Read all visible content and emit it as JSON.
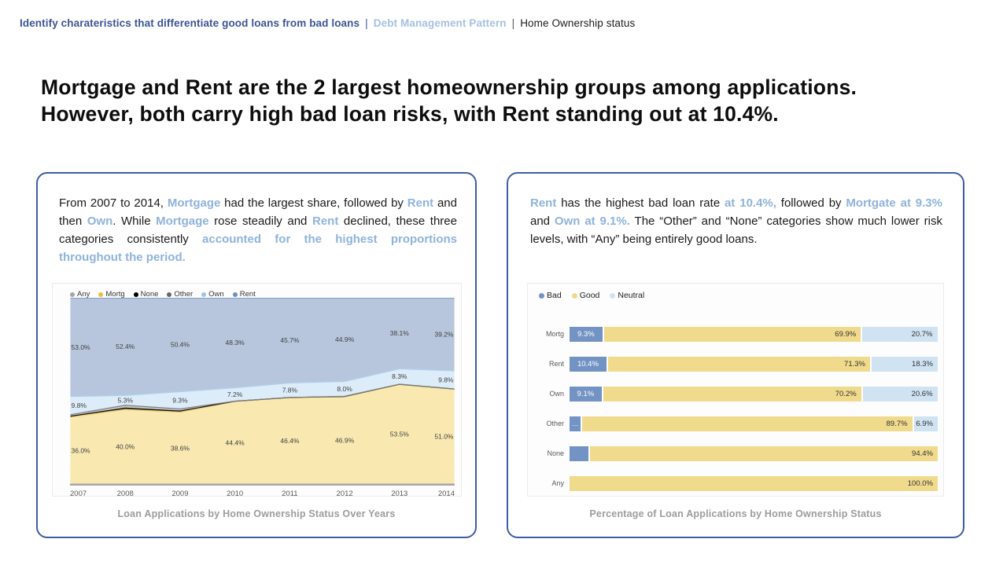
{
  "header": {
    "title_primary": "Identify charateristics that differentiate good loans from bad loans",
    "separator": "|",
    "title_secondary": "Debt Management Pattern",
    "title_tertiary": "Home Ownership status"
  },
  "headline": {
    "line1": "Mortgage and Rent are the 2 largest homeownership groups among applications.",
    "line2": "However, both carry high bad loan risks, with Rent standing out at 10.4%."
  },
  "colors": {
    "accent_navy": "#3d5494",
    "accent_lightblue": "#8fb3dc",
    "card_border": "#3d5da4",
    "caption_gray": "#9c9c9c",
    "bad": "#7293c3",
    "good": "#f0da8c",
    "neutral": "#cfe3f2"
  },
  "left_card": {
    "paragraph": [
      {
        "text": "From 2007 to 2014, ",
        "highlight": false
      },
      {
        "text": "Mortgage",
        "highlight": true
      },
      {
        "text": " had the largest share, followed by ",
        "highlight": false
      },
      {
        "text": "Rent",
        "highlight": true
      },
      {
        "text": " and then ",
        "highlight": false
      },
      {
        "text": "Own",
        "highlight": true
      },
      {
        "text": ". While ",
        "highlight": false
      },
      {
        "text": "Mortgage",
        "highlight": true
      },
      {
        "text": " rose steadily and ",
        "highlight": false
      },
      {
        "text": "Rent",
        "highlight": true
      },
      {
        "text": " declined, these three categories consistently ",
        "highlight": false
      },
      {
        "text": "accounted for the highest proportions throughout the period.",
        "highlight": true
      }
    ],
    "caption": "Loan Applications by Home Ownership Status Over Years"
  },
  "right_card": {
    "paragraph": [
      {
        "text": "Rent",
        "highlight": true
      },
      {
        "text": " has the highest bad loan rate ",
        "highlight": false
      },
      {
        "text": "at 10.4%,",
        "highlight": true
      },
      {
        "text": " followed by ",
        "highlight": false
      },
      {
        "text": "Mortgate at 9.3%",
        "highlight": true
      },
      {
        "text": " and ",
        "highlight": false
      },
      {
        "text": "Own at 9.1%.",
        "highlight": true
      },
      {
        "text": " The “Other” and “None” categories show much lower risk levels, with “Any” being entirely good loans.",
        "highlight": false
      }
    ],
    "caption": "Percentage of Loan Applications by Home Ownership Status"
  },
  "chart_data": [
    {
      "type": "area",
      "title": "Loan Applications by Home Ownership Status Over Years",
      "x": [
        2007,
        2008,
        2009,
        2010,
        2011,
        2012,
        2013,
        2014
      ],
      "ylim": [
        0,
        100
      ],
      "grid": "vertical-dotted",
      "legend_position": "top-left",
      "legend": [
        {
          "label": "Any",
          "color": "#a6a6a6"
        },
        {
          "label": "Mortg",
          "color": "#eebe3a"
        },
        {
          "label": "None",
          "color": "#000000"
        },
        {
          "label": "Other",
          "color": "#666666"
        },
        {
          "label": "Own",
          "color": "#9dc3e6"
        },
        {
          "label": "Rent",
          "color": "#6d8fc0"
        }
      ],
      "stack": [
        "Any",
        "Mortg",
        "None",
        "Other",
        "Own",
        "Rent"
      ],
      "series": [
        {
          "name": "Any",
          "fill": "#bfbfbf",
          "stroke": "#a6a6a6",
          "lw": 1,
          "labeled": false,
          "values": [
            0,
            0,
            0,
            0,
            0,
            0,
            0,
            0
          ]
        },
        {
          "name": "Mortg",
          "fill": "#f9e9b1",
          "stroke": "#e9cd6f",
          "lw": 1.4,
          "labeled": true,
          "values": [
            36.0,
            40.0,
            38.6,
            44.4,
            46.4,
            46.9,
            53.5,
            51.0
          ]
        },
        {
          "name": "None",
          "fill": "#3c3c3c",
          "stroke": "#111111",
          "lw": 1.2,
          "labeled": false,
          "values": [
            0.4,
            0.8,
            0.6,
            0.05,
            0.05,
            0.1,
            0.05,
            0.0
          ]
        },
        {
          "name": "Other",
          "fill": "#c6c6c6",
          "stroke": "#808080",
          "lw": 1.2,
          "labeled": false,
          "values": [
            0.8,
            1.5,
            1.1,
            0.05,
            0.05,
            0.1,
            0.05,
            0.0
          ]
        },
        {
          "name": "Own",
          "fill": "#dcecf8",
          "stroke": "#aed0ec",
          "lw": 1.4,
          "labeled": true,
          "values": [
            9.8,
            5.3,
            9.3,
            7.2,
            7.8,
            8.0,
            8.3,
            9.8
          ]
        },
        {
          "name": "Rent",
          "fill": "#b7c6dc",
          "stroke": "#6f94c4",
          "lw": 1.6,
          "labeled": true,
          "values": [
            53.0,
            52.4,
            50.4,
            48.3,
            45.7,
            44.9,
            38.1,
            39.2
          ]
        }
      ]
    },
    {
      "type": "bar",
      "orientation": "horizontal",
      "stacked": true,
      "title": "Percentage of Loan Applications by Home Ownership Status",
      "legend_position": "top-left",
      "legend": [
        {
          "label": "Bad",
          "color": "#7293c3"
        },
        {
          "label": "Good",
          "color": "#f0da8c"
        },
        {
          "label": "Neutral",
          "color": "#cfe3f2"
        }
      ],
      "categories": [
        "Mortg",
        "Rent",
        "Own",
        "Other",
        "None",
        "Any"
      ],
      "series": [
        {
          "name": "Bad",
          "color": "#7293c3",
          "values": [
            9.3,
            10.4,
            9.1,
            3.4,
            5.6,
            0
          ]
        },
        {
          "name": "Good",
          "color": "#f0da8c",
          "values": [
            69.9,
            71.3,
            70.2,
            89.7,
            94.4,
            100.0
          ]
        },
        {
          "name": "Neutral",
          "color": "#cfe3f2",
          "values": [
            20.7,
            18.3,
            20.6,
            6.9,
            0,
            0
          ]
        }
      ],
      "labels": [
        [
          "9.3%",
          "69.9%",
          "20.7%"
        ],
        [
          "10.4%",
          "71.3%",
          "18.3%"
        ],
        [
          "9.1%",
          "70.2%",
          "20.6%"
        ],
        [
          "...",
          "89.7%",
          "6.9%"
        ],
        [
          "",
          "94.4%",
          ""
        ],
        [
          "",
          "100.0%",
          ""
        ]
      ]
    }
  ]
}
